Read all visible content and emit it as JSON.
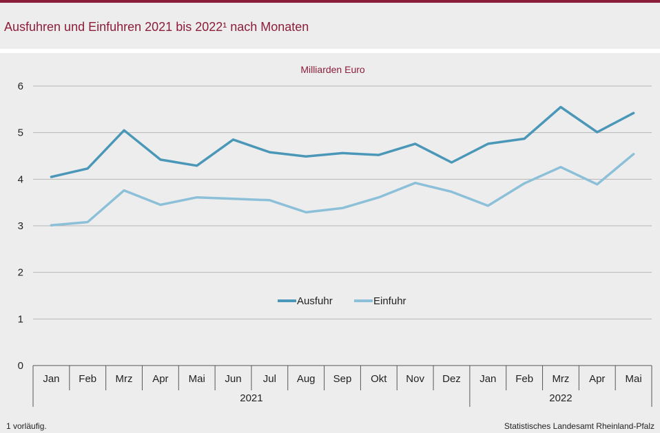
{
  "page": {
    "title": "Ausfuhren und Einfuhren 2021 bis 2022¹ nach Monaten",
    "footnote": "1 vorläufig.",
    "source": "Statistisches Landesamt Rheinland-Pfalz"
  },
  "colors": {
    "brand": "#8c1d3a",
    "ausfuhr": "#4b97b8",
    "einfuhr": "#8cc0d8",
    "grid": "#b5b5b5"
  },
  "chart_data": {
    "type": "line",
    "title": "Ausfuhren und Einfuhren 2021 bis 2022¹ nach Monaten",
    "unit_label": "Milliarden Euro",
    "categories": [
      "Jan",
      "Feb",
      "Mrz",
      "Apr",
      "Mai",
      "Jun",
      "Jul",
      "Aug",
      "Sep",
      "Okt",
      "Nov",
      "Dez",
      "Jan",
      "Feb",
      "Mrz",
      "Apr",
      "Mai"
    ],
    "year_groups": [
      {
        "label": "2021",
        "count": 12
      },
      {
        "label": "2022",
        "count": 5
      }
    ],
    "series": [
      {
        "name": "Ausfuhr",
        "values": [
          4.05,
          4.23,
          5.05,
          4.42,
          4.29,
          4.85,
          4.58,
          4.49,
          4.56,
          4.52,
          4.76,
          4.36,
          4.76,
          4.87,
          5.55,
          5.01,
          5.42
        ]
      },
      {
        "name": "Einfuhr",
        "values": [
          3.01,
          3.08,
          3.76,
          3.45,
          3.61,
          3.58,
          3.55,
          3.29,
          3.38,
          3.61,
          3.92,
          3.73,
          3.43,
          3.91,
          4.26,
          3.89,
          4.54
        ]
      }
    ],
    "ylim": [
      0,
      6
    ],
    "yticks": [
      "0",
      "1",
      "2",
      "3",
      "4",
      "5",
      "6"
    ],
    "grid": true,
    "legend": "center"
  }
}
